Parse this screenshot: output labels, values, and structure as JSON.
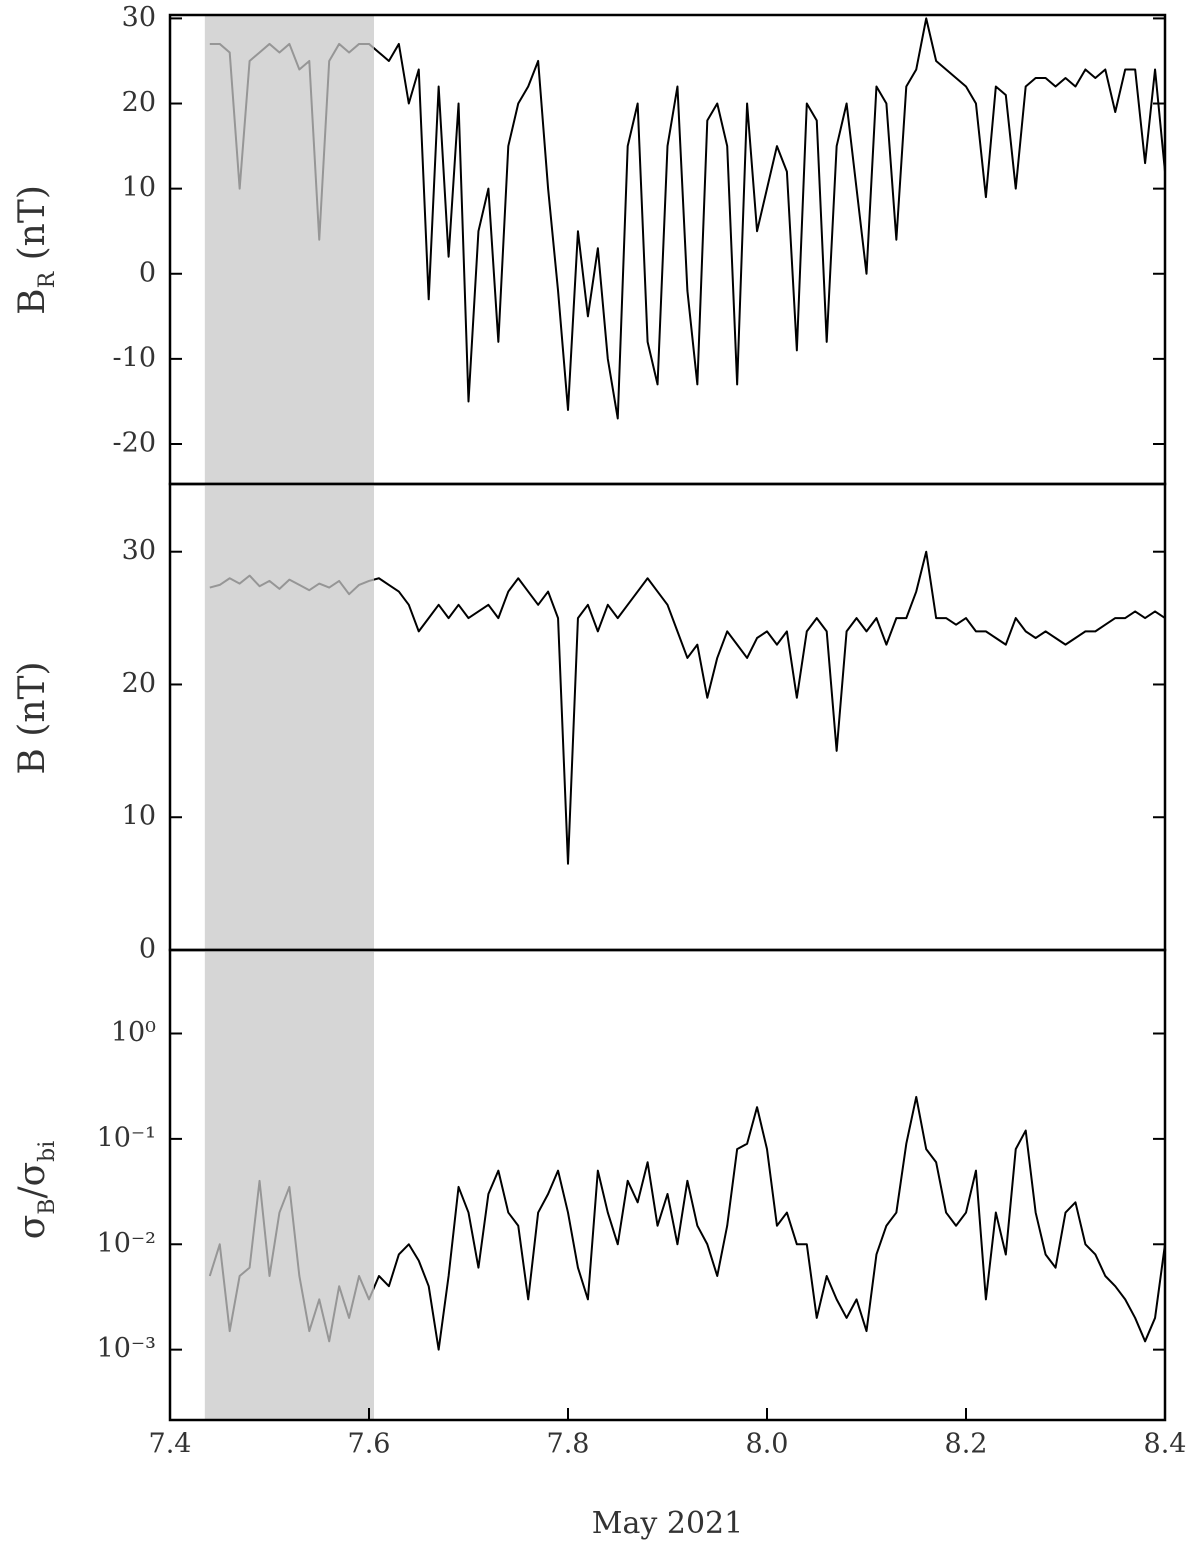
{
  "chart_data": [
    {
      "type": "line",
      "ylabel_parts": [
        "B",
        "R",
        " (nT)"
      ],
      "x": [
        7.44,
        7.45,
        7.46,
        7.47,
        7.48,
        7.49,
        7.5,
        7.51,
        7.52,
        7.53,
        7.54,
        7.55,
        7.56,
        7.57,
        7.58,
        7.59,
        7.6,
        7.61,
        7.62,
        7.63,
        7.64,
        7.65,
        7.66,
        7.67,
        7.68,
        7.69,
        7.7,
        7.71,
        7.72,
        7.73,
        7.74,
        7.75,
        7.76,
        7.77,
        7.78,
        7.79,
        7.8,
        7.81,
        7.82,
        7.83,
        7.84,
        7.85,
        7.86,
        7.87,
        7.88,
        7.89,
        7.9,
        7.91,
        7.92,
        7.93,
        7.94,
        7.95,
        7.96,
        7.97,
        7.98,
        7.99,
        8.0,
        8.01,
        8.02,
        8.03,
        8.04,
        8.05,
        8.06,
        8.07,
        8.08,
        8.09,
        8.1,
        8.11,
        8.12,
        8.13,
        8.14,
        8.15,
        8.16,
        8.17,
        8.18,
        8.19,
        8.2,
        8.21,
        8.22,
        8.23,
        8.24,
        8.25,
        8.26,
        8.27,
        8.28,
        8.29,
        8.3,
        8.31,
        8.32,
        8.33,
        8.34,
        8.35,
        8.36,
        8.37,
        8.38,
        8.39,
        8.4
      ],
      "values": [
        27,
        27,
        26,
        10,
        25,
        26,
        27,
        26,
        27,
        24,
        25,
        4,
        25,
        27,
        26,
        27,
        27,
        26,
        25,
        27,
        20,
        24,
        -3,
        22,
        2,
        20,
        -15,
        5,
        10,
        -8,
        15,
        20,
        22,
        25,
        10,
        -2,
        -16,
        5,
        -5,
        3,
        -10,
        -17,
        15,
        20,
        -8,
        -13,
        15,
        22,
        -2,
        -13,
        18,
        20,
        15,
        -13,
        20,
        5,
        10,
        15,
        12,
        -9,
        20,
        18,
        -8,
        15,
        20,
        10,
        0,
        22,
        20,
        4,
        22,
        24,
        30,
        25,
        24,
        23,
        22,
        20,
        9,
        22,
        21,
        10,
        22,
        23,
        23,
        22,
        23,
        22,
        24,
        23,
        24,
        19,
        24,
        24,
        13,
        24,
        12
      ],
      "color": "#000000",
      "shaded_span": [
        7.435,
        7.605
      ],
      "span_color": "#c8c8c8",
      "xlim": [
        7.4,
        8.4
      ],
      "ylim": [
        -24.7,
        30.4
      ],
      "yticks": [
        -20,
        -10,
        0,
        10,
        20,
        30
      ]
    },
    {
      "type": "line",
      "ylabel_parts": [
        "B (nT)"
      ],
      "x": [
        7.44,
        7.45,
        7.46,
        7.47,
        7.48,
        7.49,
        7.5,
        7.51,
        7.52,
        7.53,
        7.54,
        7.55,
        7.56,
        7.57,
        7.58,
        7.59,
        7.6,
        7.61,
        7.62,
        7.63,
        7.64,
        7.65,
        7.66,
        7.67,
        7.68,
        7.69,
        7.7,
        7.71,
        7.72,
        7.73,
        7.74,
        7.75,
        7.76,
        7.77,
        7.78,
        7.79,
        7.8,
        7.81,
        7.82,
        7.83,
        7.84,
        7.85,
        7.86,
        7.87,
        7.88,
        7.89,
        7.9,
        7.91,
        7.92,
        7.93,
        7.94,
        7.95,
        7.96,
        7.97,
        7.98,
        7.99,
        8.0,
        8.01,
        8.02,
        8.03,
        8.04,
        8.05,
        8.06,
        8.07,
        8.08,
        8.09,
        8.1,
        8.11,
        8.12,
        8.13,
        8.14,
        8.15,
        8.16,
        8.17,
        8.18,
        8.19,
        8.2,
        8.21,
        8.22,
        8.23,
        8.24,
        8.25,
        8.26,
        8.27,
        8.28,
        8.29,
        8.3,
        8.31,
        8.32,
        8.33,
        8.34,
        8.35,
        8.36,
        8.37,
        8.38,
        8.39,
        8.4
      ],
      "values": [
        27.3,
        27.5,
        28,
        27.6,
        28.2,
        27.4,
        27.8,
        27.2,
        27.9,
        27.5,
        27.1,
        27.6,
        27.3,
        27.8,
        26.8,
        27.5,
        27.8,
        28,
        27.5,
        27,
        26,
        24,
        25,
        26,
        25,
        26,
        25,
        25.5,
        26,
        25,
        27,
        28,
        27,
        26,
        27,
        25,
        6.5,
        25,
        26,
        24,
        26,
        25,
        26,
        27,
        28,
        27,
        26,
        24,
        22,
        23,
        19,
        22,
        24,
        23,
        22,
        23.5,
        24,
        23,
        24,
        19,
        24,
        25,
        24,
        15,
        24,
        25,
        24,
        25,
        23,
        25,
        25,
        27,
        30,
        25,
        25,
        24.5,
        25,
        24,
        24,
        23.5,
        23,
        25,
        24,
        23.5,
        24,
        23.5,
        23,
        23.5,
        24,
        24,
        24.5,
        25,
        25,
        25.5,
        25,
        25.5,
        25
      ],
      "color": "#000000",
      "shaded_span": [
        7.435,
        7.605
      ],
      "span_color": "#c8c8c8",
      "xlim": [
        7.4,
        8.4
      ],
      "ylim": [
        0,
        35.1
      ],
      "yticks": [
        0,
        10,
        20,
        30
      ]
    },
    {
      "type": "line",
      "ylabel_parts": [
        "σ",
        "B",
        "/σ",
        "bi"
      ],
      "log": true,
      "x": [
        7.44,
        7.45,
        7.46,
        7.47,
        7.48,
        7.49,
        7.5,
        7.51,
        7.52,
        7.53,
        7.54,
        7.55,
        7.56,
        7.57,
        7.58,
        7.59,
        7.6,
        7.61,
        7.62,
        7.63,
        7.64,
        7.65,
        7.66,
        7.67,
        7.68,
        7.69,
        7.7,
        7.71,
        7.72,
        7.73,
        7.74,
        7.75,
        7.76,
        7.77,
        7.78,
        7.79,
        7.8,
        7.81,
        7.82,
        7.83,
        7.84,
        7.85,
        7.86,
        7.87,
        7.88,
        7.89,
        7.9,
        7.91,
        7.92,
        7.93,
        7.94,
        7.95,
        7.96,
        7.97,
        7.98,
        7.99,
        8.0,
        8.01,
        8.02,
        8.03,
        8.04,
        8.05,
        8.06,
        8.07,
        8.08,
        8.09,
        8.1,
        8.11,
        8.12,
        8.13,
        8.14,
        8.15,
        8.16,
        8.17,
        8.18,
        8.19,
        8.2,
        8.21,
        8.22,
        8.23,
        8.24,
        8.25,
        8.26,
        8.27,
        8.28,
        8.29,
        8.3,
        8.31,
        8.32,
        8.33,
        8.34,
        8.35,
        8.36,
        8.37,
        8.38,
        8.39,
        8.4
      ],
      "values": [
        0.005,
        0.01,
        0.0015,
        0.005,
        0.006,
        0.04,
        0.005,
        0.02,
        0.035,
        0.005,
        0.0015,
        0.003,
        0.0012,
        0.004,
        0.002,
        0.005,
        0.003,
        0.005,
        0.004,
        0.008,
        0.01,
        0.007,
        0.004,
        0.001,
        0.005,
        0.035,
        0.02,
        0.006,
        0.03,
        0.05,
        0.02,
        0.015,
        0.003,
        0.02,
        0.03,
        0.05,
        0.02,
        0.006,
        0.003,
        0.05,
        0.02,
        0.01,
        0.04,
        0.025,
        0.06,
        0.015,
        0.03,
        0.01,
        0.04,
        0.015,
        0.01,
        0.005,
        0.015,
        0.08,
        0.09,
        0.2,
        0.08,
        0.015,
        0.02,
        0.01,
        0.01,
        0.002,
        0.005,
        0.003,
        0.002,
        0.003,
        0.0015,
        0.008,
        0.015,
        0.02,
        0.09,
        0.25,
        0.08,
        0.06,
        0.02,
        0.015,
        0.02,
        0.05,
        0.003,
        0.02,
        0.008,
        0.08,
        0.12,
        0.02,
        0.008,
        0.006,
        0.02,
        0.025,
        0.01,
        0.008,
        0.005,
        0.004,
        0.003,
        0.002,
        0.0012,
        0.002,
        0.01
      ],
      "color": "#000000",
      "shaded_span": [
        7.435,
        7.605
      ],
      "span_color": "#c8c8c8",
      "xlim": [
        7.4,
        8.4
      ],
      "ylim": [
        0.000215,
        6.2
      ],
      "yticks": [
        {
          "value": 0.001,
          "label": "10⁻³"
        },
        {
          "value": 0.01,
          "label": "10⁻²"
        },
        {
          "value": 0.1,
          "label": "10⁻¹"
        },
        {
          "value": 1,
          "label": "10⁰"
        }
      ],
      "xticks": [
        7.4,
        7.6,
        7.8,
        {
          "value": 8,
          "label": "8.0"
        },
        8.2,
        8.4
      ],
      "xlabel": "May 2021"
    }
  ]
}
